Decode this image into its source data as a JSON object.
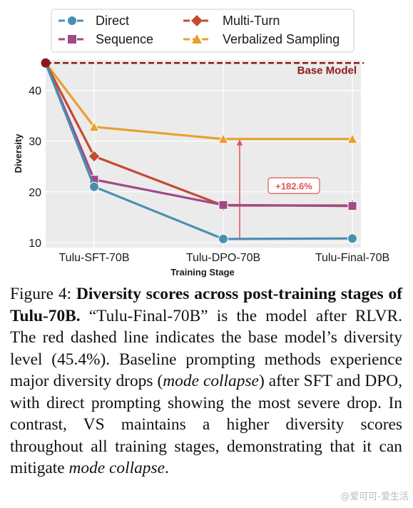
{
  "chart_data": {
    "type": "line",
    "title": "",
    "xlabel": "Training Stage",
    "ylabel": "Diversity",
    "categories": [
      "Tulu-SFT-70B",
      "Tulu-DPO-70B",
      "Tulu-Final-70B"
    ],
    "ylim": [
      9,
      46
    ],
    "yticks": [
      10,
      20,
      30,
      40
    ],
    "grid": true,
    "legend_position": "top",
    "start_value": 45.4,
    "series": [
      {
        "name": "Direct",
        "values": [
          21.0,
          10.7,
          10.8
        ],
        "color": "#4a8fb0",
        "marker": "circle",
        "style": "solid"
      },
      {
        "name": "Multi-Turn",
        "values": [
          27.0,
          17.3,
          17.3
        ],
        "color": "#c44a32",
        "marker": "diamond",
        "style": "solid"
      },
      {
        "name": "Sequence",
        "values": [
          22.4,
          17.4,
          17.2
        ],
        "color": "#a04a88",
        "marker": "square",
        "style": "solid"
      },
      {
        "name": "Verbalized Sampling",
        "values": [
          32.8,
          30.4,
          30.4
        ],
        "color": "#e8a02e",
        "marker": "triangle",
        "style": "solid"
      }
    ],
    "reference_line": {
      "label": "Base Model",
      "value": 45.4,
      "color": "#8b1a1a",
      "style": "dashed"
    },
    "annotation": {
      "text": "+182.6%",
      "from": 10.7,
      "to": 30.4,
      "category": "Tulu-DPO-70B",
      "color": "#e05555"
    }
  },
  "caption": {
    "label": "Figure 4:",
    "bold": "Diversity scores across post-training stages of Tulu-70B.",
    "text1": "“Tulu-Final-70B” is the model after RLVR. The red dashed line indicates the base model’s diversity level (45.4%). Baseline prompting methods experience major diversity drops (",
    "italic1": "mode collapse",
    "text2": ") after SFT and DPO, with direct prompting showing the most severe drop. In contrast, VS maintains a higher diversity scores throughout all training stages, demonstrating that it can mitigate ",
    "italic2": "mode collapse",
    "text3": "."
  },
  "watermark": "@爱可可-爱生活"
}
